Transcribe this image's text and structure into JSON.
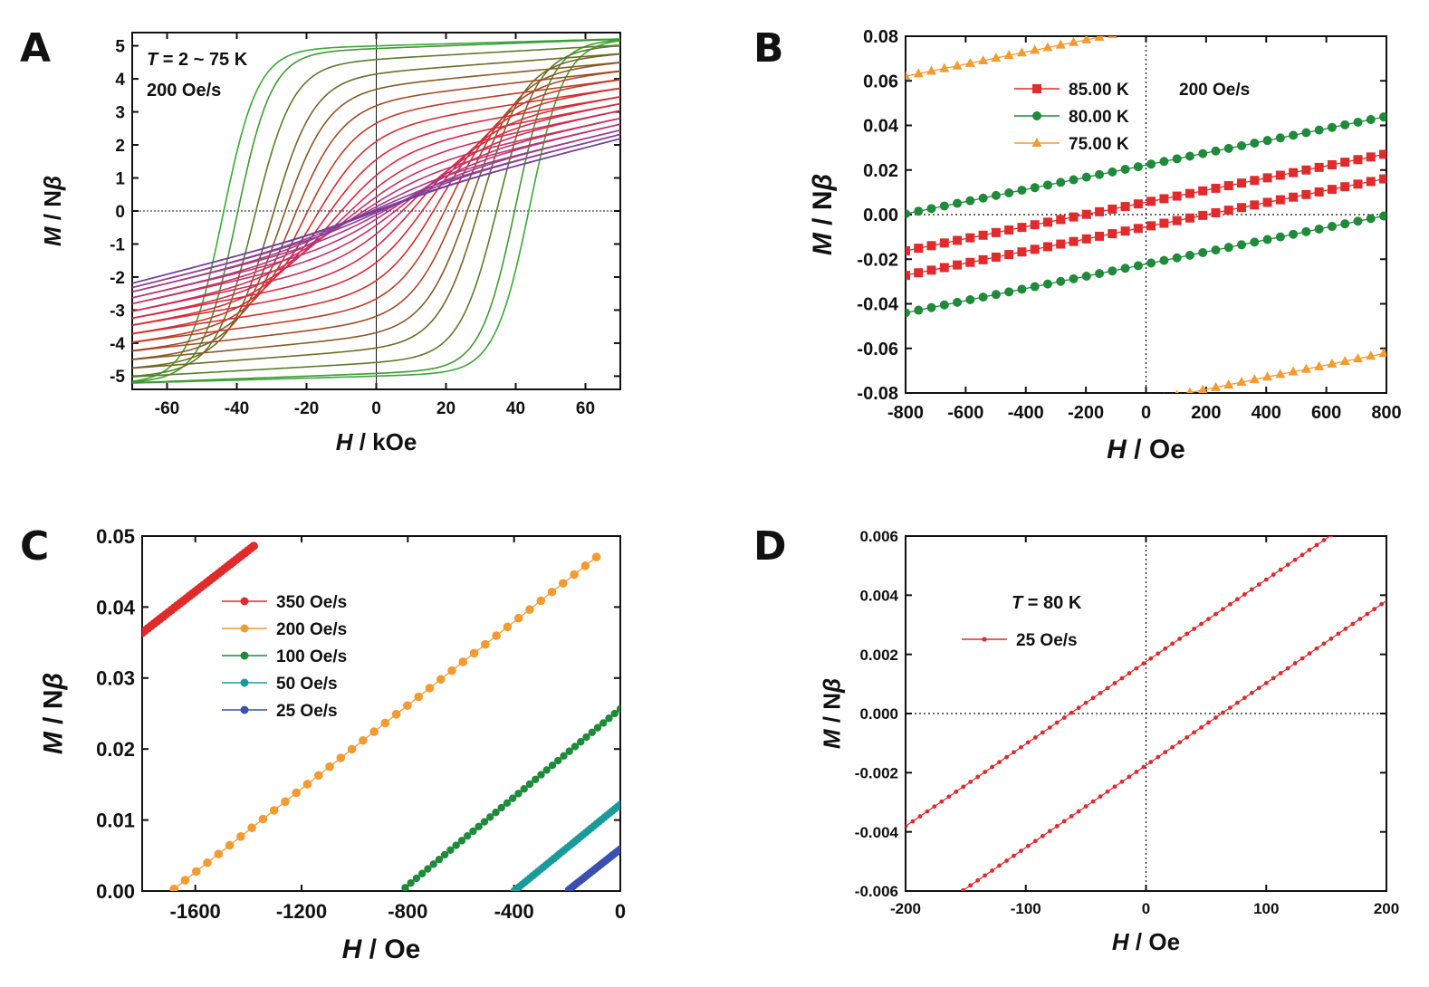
{
  "figure": {
    "panel_letters": [
      "A",
      "B",
      "C",
      "D"
    ]
  },
  "chart_data": [
    {
      "panel": "A",
      "type": "line",
      "xlabel_var": "H",
      "xlabel_unit": " / kOe",
      "ylabel_var": "M",
      "ylabel_unit": " / N",
      "ylabel_greek": "β",
      "xlim": [
        -70,
        70
      ],
      "ylim": [
        -5.4,
        5.4
      ],
      "xticks": [
        -60,
        -40,
        -20,
        0,
        20,
        40,
        60
      ],
      "yticks": [
        -5,
        -4,
        -3,
        -2,
        -1,
        0,
        1,
        2,
        3,
        4,
        5
      ],
      "annotation_var": "T",
      "annotation_value": " = 2 ~ 75 K",
      "annotation_rate": "200 Oe/s",
      "family": {
        "description": "hysteresis loops, one upper and one lower branch per temperature",
        "loops": [
          {
            "ms": 5.0,
            "hc": 44,
            "w": 10,
            "chi": 0.003,
            "color": "#39a935"
          },
          {
            "ms": 4.92,
            "hc": 40,
            "w": 10,
            "chi": 0.004,
            "color": "#3f9a33"
          },
          {
            "ms": 4.6,
            "hc": 35,
            "w": 11,
            "chi": 0.006,
            "color": "#5a7d2a"
          },
          {
            "ms": 4.2,
            "hc": 30,
            "w": 12,
            "chi": 0.008,
            "color": "#6f6b27"
          },
          {
            "ms": 3.8,
            "hc": 27,
            "w": 13,
            "chi": 0.01,
            "color": "#8a5a26"
          },
          {
            "ms": 3.4,
            "hc": 24,
            "w": 14,
            "chi": 0.012,
            "color": "#a64a25"
          },
          {
            "ms": 3.0,
            "hc": 21,
            "w": 15,
            "chi": 0.014,
            "color": "#c23c27"
          },
          {
            "ms": 2.6,
            "hc": 18,
            "w": 16,
            "chi": 0.016,
            "color": "#d52f2c"
          },
          {
            "ms": 2.2,
            "hc": 15,
            "w": 17,
            "chi": 0.018,
            "color": "#dc2a36"
          },
          {
            "ms": 1.85,
            "hc": 12,
            "w": 18,
            "chi": 0.02,
            "color": "#d92a45"
          },
          {
            "ms": 1.5,
            "hc": 9.5,
            "w": 19,
            "chi": 0.022,
            "color": "#d32c55"
          },
          {
            "ms": 1.2,
            "hc": 7.5,
            "w": 20,
            "chi": 0.023,
            "color": "#c83065"
          },
          {
            "ms": 0.95,
            "hc": 5.5,
            "w": 21,
            "chi": 0.024,
            "color": "#b93575"
          },
          {
            "ms": 0.7,
            "hc": 4,
            "w": 22,
            "chi": 0.025,
            "color": "#a43b85"
          },
          {
            "ms": 0.5,
            "hc": 2.5,
            "w": 23,
            "chi": 0.026,
            "color": "#8c3f93"
          },
          {
            "ms": 0.3,
            "hc": 1.2,
            "w": 24,
            "chi": 0.027,
            "color": "#743f9d"
          }
        ]
      }
    },
    {
      "panel": "B",
      "type": "line",
      "xlabel_var": "H",
      "xlabel_unit": " / Oe",
      "ylabel_var": "M",
      "ylabel_unit": " / N",
      "ylabel_greek": "β",
      "xlim": [
        -800,
        800
      ],
      "ylim": [
        -0.08,
        0.08
      ],
      "xticks": [
        -800,
        -600,
        -400,
        -200,
        0,
        200,
        400,
        600,
        800
      ],
      "yticks": [
        -0.08,
        -0.06,
        -0.04,
        -0.02,
        0.0,
        0.02,
        0.04,
        0.06,
        0.08
      ],
      "ytick_labels": [
        "-0.08",
        "-0.06",
        "-0.04",
        "-0.02",
        "0.00",
        "0.02",
        "0.04",
        "0.06",
        "0.08"
      ],
      "rate_label": "200 Oe/s",
      "series": [
        {
          "name": "85.00 K",
          "color": "#e02a2c",
          "marker": "square",
          "slope": 2.72e-05,
          "offsets": [
            0.0055,
            -0.0055
          ]
        },
        {
          "name": "80.00 K",
          "color": "#1e8a3a",
          "marker": "circle",
          "slope": 2.73e-05,
          "offsets": [
            0.0222,
            -0.0222
          ]
        },
        {
          "name": "75.00 K",
          "color": "#f39a31",
          "marker": "triangle",
          "slope": 2.72e-05,
          "offsets": [
            0.0838,
            -0.0838
          ]
        }
      ]
    },
    {
      "panel": "C",
      "type": "line",
      "xlabel_var": "H",
      "xlabel_unit": " / Oe",
      "ylabel_var": "M",
      "ylabel_unit": " / N",
      "ylabel_greek": "β",
      "xlim": [
        -1800,
        0
      ],
      "ylim": [
        0.0,
        0.05
      ],
      "xticks": [
        -1600,
        -1200,
        -800,
        -400,
        0
      ],
      "yticks": [
        0.0,
        0.01,
        0.02,
        0.03,
        0.04,
        0.05
      ],
      "ytick_labels": [
        "0.00",
        "0.01",
        "0.02",
        "0.03",
        "0.04",
        "0.05"
      ],
      "series": [
        {
          "name": "350 Oe/s",
          "color": "#e02a2c",
          "x_range": [
            -1800,
            -1380
          ],
          "intercept_x": -3050,
          "slope": 2.91e-05
        },
        {
          "name": "200 Oe/s",
          "color": "#f39a31",
          "x_range": [
            -1680,
            -90
          ],
          "intercept_x": -1690,
          "slope": 2.94e-05
        },
        {
          "name": "100 Oe/s",
          "color": "#1e8a3a",
          "x_range": [
            -810,
            0
          ],
          "intercept_x": -825,
          "slope": 3.11e-05
        },
        {
          "name": "50 Oe/s",
          "color": "#1a9a9a",
          "x_range": [
            -400,
            0
          ],
          "intercept_x": -400,
          "slope": 3.05e-05
        },
        {
          "name": "25 Oe/s",
          "color": "#3a4fb0",
          "x_range": [
            -195,
            0
          ],
          "intercept_x": -200,
          "slope": 2.95e-05
        }
      ]
    },
    {
      "panel": "D",
      "type": "line",
      "xlabel_var": "H",
      "xlabel_unit": " / Oe",
      "ylabel_var": "M",
      "ylabel_unit": " / N",
      "ylabel_greek": "β",
      "xlim": [
        -200,
        200
      ],
      "ylim": [
        -0.006,
        0.006
      ],
      "xticks": [
        -200,
        -100,
        0,
        100,
        200
      ],
      "yticks": [
        -0.006,
        -0.004,
        -0.002,
        0.0,
        0.002,
        0.004,
        0.006
      ],
      "ytick_labels": [
        "-0.006",
        "-0.004",
        "-0.002",
        "0.000",
        "0.002",
        "0.004",
        "0.006"
      ],
      "annotation_var": "T",
      "annotation_value": " = 80 K",
      "series": [
        {
          "name": "25 Oe/s",
          "color": "#e02a2c",
          "slope": 2.78e-05,
          "offsets": [
            0.00175,
            -0.00175
          ]
        }
      ]
    }
  ]
}
